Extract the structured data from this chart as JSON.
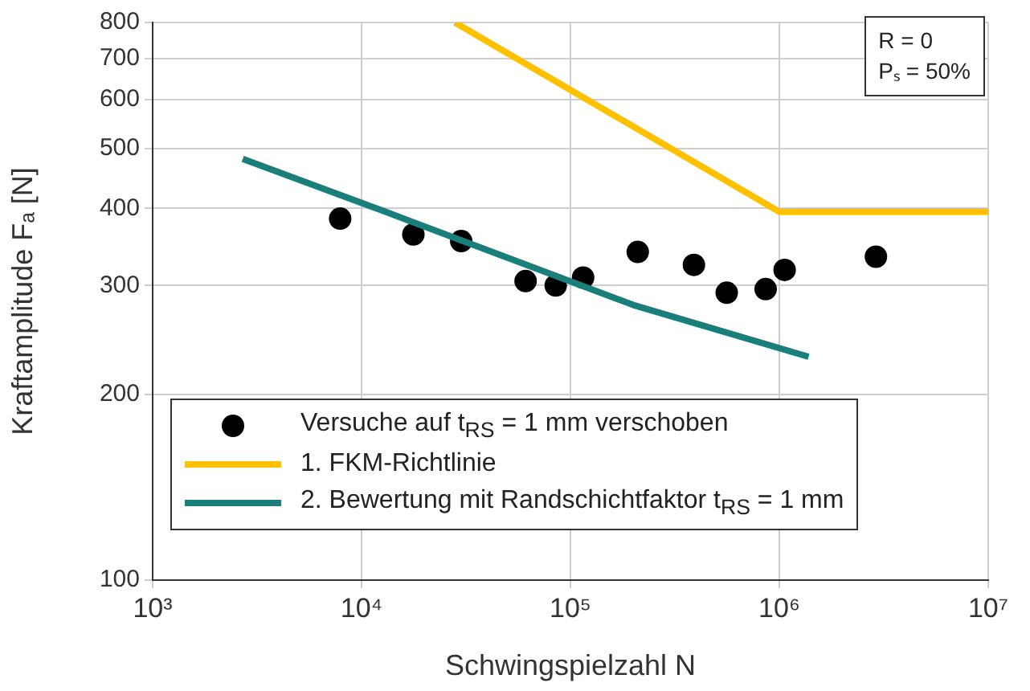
{
  "chart_data": {
    "type": "scatter",
    "xlabel": "Schwingspielzahl N",
    "ylabel": "Kraftamplitude Fₐ [N]",
    "log": "xy",
    "grid": true,
    "legend": "bottom left",
    "xlim": [
      1000,
      10000000
    ],
    "xticks": [
      {
        "value": 1000,
        "label": "10³"
      },
      {
        "value": 10000,
        "label": "10⁴"
      },
      {
        "value": 100000,
        "label": "10⁵"
      },
      {
        "value": 1000000,
        "label": "10⁶"
      },
      {
        "value": 10000000,
        "label": "10⁷"
      }
    ],
    "ylim": [
      100,
      800
    ],
    "yticks": [
      100,
      200,
      300,
      400,
      500,
      600,
      700,
      800
    ],
    "annotations": [
      "R = 0",
      "Pₛ = 50%"
    ],
    "series": [
      {
        "name": "Versuche auf t$_{RS}$ = 1 mm verschoben",
        "marker": "circle",
        "color": "#000000",
        "x": [
          7900,
          17700,
          30000,
          61000,
          85000,
          115000,
          210000,
          390000,
          560000,
          860000,
          1060000,
          2900000
        ],
        "values": [
          385,
          363,
          354,
          305,
          300,
          309,
          340,
          324,
          292,
          296,
          318,
          334
        ]
      },
      {
        "name": "1. FKM-Richtlinie",
        "type": "line",
        "marker": "none",
        "color": "#ffc000",
        "x": [
          28000,
          1000000,
          10000000
        ],
        "values": [
          800,
          395,
          395
        ]
      },
      {
        "name": "2. Bewertung mit Randschichtfaktor t$_{RS}$ = 1 mm",
        "type": "line",
        "marker": "none",
        "color": "#1a7f7a",
        "x": [
          2700,
          12500,
          200000,
          1380000
        ],
        "values": [
          481,
          397,
          279,
          230
        ]
      }
    ]
  }
}
